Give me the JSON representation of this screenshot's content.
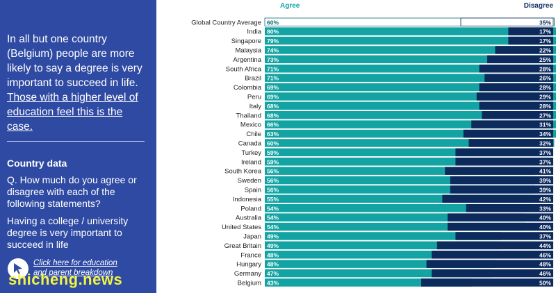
{
  "sidebar": {
    "intro_text": "In all but one country (Belgium) people are more likely to say a degree is very important to succeed in life.",
    "intro_highlight": "Those with a higher level of education feel this is the case.",
    "section_title": "Country data",
    "question": "Q. How much do you agree or disagree with each of the following statements?",
    "statement": "Having a college / university degree is very important to succeed in life",
    "link_text": "Click here for education and parent breakdown"
  },
  "watermark": "shicheng.news",
  "colors": {
    "sidebar_bg": "#2f4aa2",
    "agree": "#13a3a3",
    "disagree": "#0d2a5c",
    "watermark": "#f2f542"
  },
  "chart_data": {
    "type": "bar",
    "orientation": "horizontal-diverging",
    "headers": {
      "agree": "Agree",
      "disagree": "Disagree"
    },
    "categories": [
      "Global Country Average",
      "India",
      "Singapore",
      "Malaysia",
      "Argentina",
      "South Africa",
      "Brazil",
      "Colombia",
      "Peru",
      "Italy",
      "Thailand",
      "Mexico",
      "Chile",
      "Canada",
      "Turkey",
      "Ireland",
      "South Korea",
      "Sweden",
      "Spain",
      "Indonesia",
      "Poland",
      "Australia",
      "United States",
      "Japan",
      "Great Britain",
      "France",
      "Hungary",
      "Germany",
      "Belgium"
    ],
    "series": [
      {
        "name": "Agree",
        "values": [
          60,
          80,
          79,
          74,
          73,
          71,
          71,
          69,
          69,
          68,
          68,
          66,
          63,
          60,
          59,
          59,
          56,
          56,
          56,
          55,
          54,
          54,
          54,
          49,
          49,
          48,
          48,
          47,
          43
        ]
      },
      {
        "name": "Disagree",
        "values": [
          35,
          17,
          17,
          22,
          25,
          28,
          26,
          28,
          29,
          28,
          27,
          31,
          34,
          32,
          37,
          37,
          41,
          39,
          39,
          42,
          33,
          40,
          40,
          37,
          44,
          46,
          48,
          46,
          50
        ]
      }
    ],
    "value_suffix": "%",
    "highlighted_category": "Global Country Average"
  }
}
